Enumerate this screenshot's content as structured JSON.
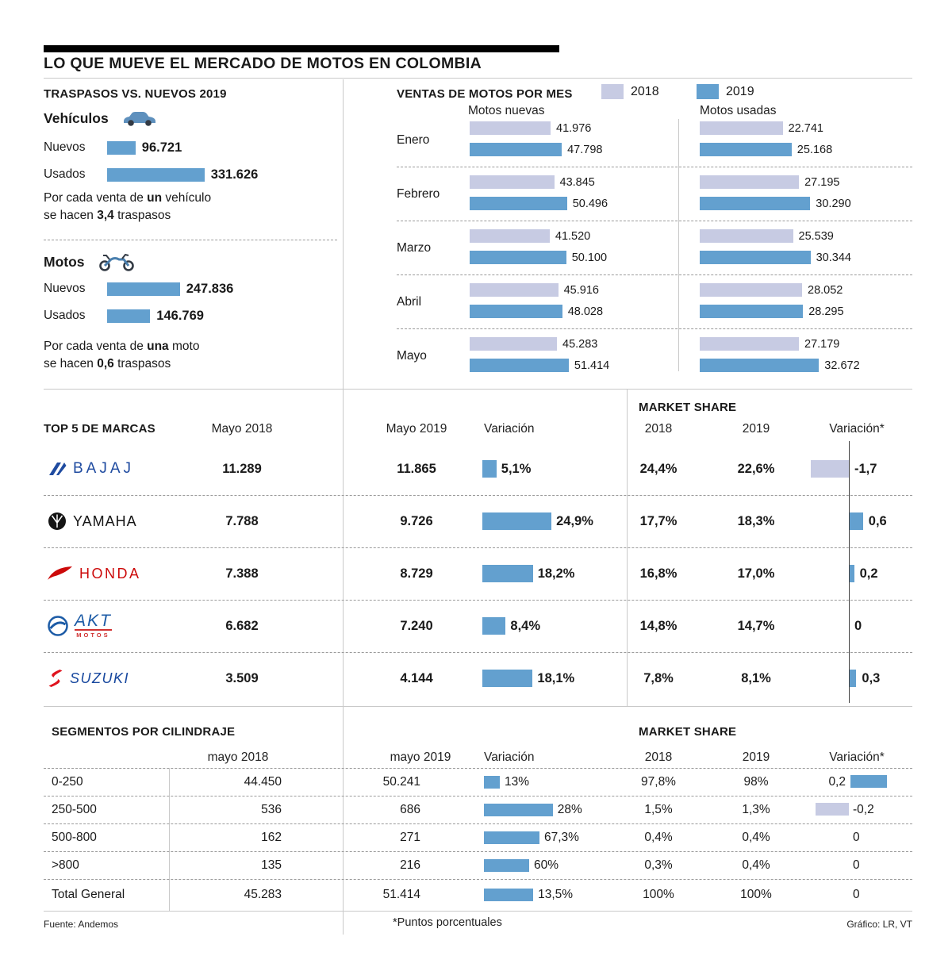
{
  "colors": {
    "y2018": "#c7cbe3",
    "y2019": "#63a0cf",
    "bajaj": "#1f4ba0",
    "yamaha": "#141414",
    "honda": "#cc0a0a",
    "akt": "#1c5ba6",
    "akt_accent": "#d03030",
    "suzuki_text": "#17479e",
    "suzuki_s": "#e0131e"
  },
  "header": {
    "title": "LO QUE MUEVE EL MERCADO DE MOTOS EN COLOMBIA"
  },
  "chart_data": [
    {
      "id": "traspasos-vs-nuevos",
      "type": "bar",
      "title": "TRASPASOS VS. NUEVOS 2019",
      "groups": [
        {
          "name": "Vehículos",
          "icon": "car-icon",
          "rows": [
            {
              "label": "Nuevos",
              "value": 96721,
              "display": "96.721"
            },
            {
              "label": "Usados",
              "value": 331626,
              "display": "331.626"
            }
          ],
          "note": {
            "l1a": "Por cada venta de ",
            "l1b": "un",
            "l1c": " vehículo",
            "l2a": "se hacen ",
            "l2b": "3,4",
            "l2c": " traspasos"
          }
        },
        {
          "name": "Motos",
          "icon": "motorcycle-icon",
          "rows": [
            {
              "label": "Nuevos",
              "value": 247836,
              "display": "247.836"
            },
            {
              "label": "Usados",
              "value": 146769,
              "display": "146.769"
            }
          ],
          "note": {
            "l1a": "Por cada venta de ",
            "l1b": "una",
            "l1c": " moto",
            "l2a": "se hacen ",
            "l2b": "0,6",
            "l2c": " traspasos"
          }
        }
      ]
    },
    {
      "id": "ventas-motos-por-mes",
      "type": "bar",
      "title": "VENTAS DE MOTOS POR MES",
      "legend": [
        "2018",
        "2019"
      ],
      "categories": [
        "Enero",
        "Febrero",
        "Marzo",
        "Abril",
        "Mayo"
      ],
      "groups": [
        {
          "name": "Motos nuevas",
          "series": [
            {
              "name": "2018",
              "values": [
                41976,
                43845,
                41520,
                45916,
                45283
              ],
              "labels": [
                "41.976",
                "43.845",
                "41.520",
                "45.916",
                "45.283"
              ]
            },
            {
              "name": "2019",
              "values": [
                47798,
                50496,
                50100,
                48028,
                51414
              ],
              "labels": [
                "47.798",
                "50.496",
                "50.100",
                "48.028",
                "51.414"
              ]
            }
          ]
        },
        {
          "name": "Motos usadas",
          "series": [
            {
              "name": "2018",
              "values": [
                22741,
                27195,
                25539,
                28052,
                27179
              ],
              "labels": [
                "22.741",
                "27.195",
                "25.539",
                "28.052",
                "27.179"
              ]
            },
            {
              "name": "2019",
              "values": [
                25168,
                30290,
                30344,
                28295,
                32672
              ],
              "labels": [
                "25.168",
                "30.290",
                "30.344",
                "28.295",
                "32.672"
              ]
            }
          ]
        }
      ]
    },
    {
      "id": "top5-marcas",
      "type": "table",
      "title": "TOP 5 DE MARCAS",
      "market_share_title": "MARKET SHARE",
      "columns": [
        "Mayo 2018",
        "Mayo 2019",
        "Variación",
        "2018",
        "2019",
        "Variación*"
      ],
      "rows": [
        {
          "brand": "BAJAJ",
          "mayo_2018": "11.289",
          "mayo_2019": "11.865",
          "variacion_pct": 5.1,
          "variacion": "5,1%",
          "share_2018": "24,4%",
          "share_2019": "22,6%",
          "share_var_pts": -1.7,
          "share_var": "-1,7"
        },
        {
          "brand": "YAMAHA",
          "mayo_2018": "7.788",
          "mayo_2019": "9.726",
          "variacion_pct": 24.9,
          "variacion": "24,9%",
          "share_2018": "17,7%",
          "share_2019": "18,3%",
          "share_var_pts": 0.6,
          "share_var": "0,6"
        },
        {
          "brand": "HONDA",
          "mayo_2018": "7.388",
          "mayo_2019": "8.729",
          "variacion_pct": 18.2,
          "variacion": "18,2%",
          "share_2018": "16,8%",
          "share_2019": "17,0%",
          "share_var_pts": 0.2,
          "share_var": "0,2"
        },
        {
          "brand": "AKT",
          "brand_sub": "MOTOS",
          "mayo_2018": "6.682",
          "mayo_2019": "7.240",
          "variacion_pct": 8.4,
          "variacion": "8,4%",
          "share_2018": "14,8%",
          "share_2019": "14,7%",
          "share_var_pts": 0,
          "share_var": "0"
        },
        {
          "brand": "SUZUKI",
          "mayo_2018": "3.509",
          "mayo_2019": "4.144",
          "variacion_pct": 18.1,
          "variacion": "18,1%",
          "share_2018": "7,8%",
          "share_2019": "8,1%",
          "share_var_pts": 0.3,
          "share_var": "0,3"
        }
      ]
    },
    {
      "id": "segmentos-por-cilindraje",
      "type": "table",
      "title": "SEGMENTOS POR CILINDRAJE",
      "market_share_title": "MARKET SHARE",
      "columns": [
        "mayo 2018",
        "mayo 2019",
        "Variación",
        "2018",
        "2019",
        "Variación*"
      ],
      "rows": [
        {
          "segmento": "0-250",
          "mayo_2018": "44.450",
          "mayo_2019": "50.241",
          "variacion_pct": 13,
          "variacion": "13%",
          "share_2018": "97,8%",
          "share_2019": "98%",
          "share_var_pts": 0.2,
          "share_var": "0,2"
        },
        {
          "segmento": "250-500",
          "mayo_2018": "536",
          "mayo_2019": "686",
          "variacion_pct": 28,
          "variacion": "28%",
          "share_2018": "1,5%",
          "share_2019": "1,3%",
          "share_var_pts": -0.2,
          "share_var": "-0,2"
        },
        {
          "segmento": "500-800",
          "mayo_2018": "162",
          "mayo_2019": "271",
          "variacion_pct": 67.3,
          "variacion": "67,3%",
          "share_2018": "0,4%",
          "share_2019": "0,4%",
          "share_var_pts": 0,
          "share_var": "0"
        },
        {
          "segmento": ">800",
          "mayo_2018": "135",
          "mayo_2019": "216",
          "variacion_pct": 60,
          "variacion": "60%",
          "share_2018": "0,3%",
          "share_2019": "0,4%",
          "share_var_pts": 0,
          "share_var": "0"
        },
        {
          "segmento": "Total General",
          "mayo_2018": "45.283",
          "mayo_2019": "51.414",
          "variacion_pct": 13.5,
          "variacion": "13,5%",
          "share_2018": "100%",
          "share_2019": "100%",
          "share_var_pts": 0,
          "share_var": "0"
        }
      ]
    }
  ],
  "footer": {
    "fuente": "Fuente: Andemos",
    "nota": "*Puntos porcentuales",
    "grafico": "Gráfico: LR, VT"
  }
}
